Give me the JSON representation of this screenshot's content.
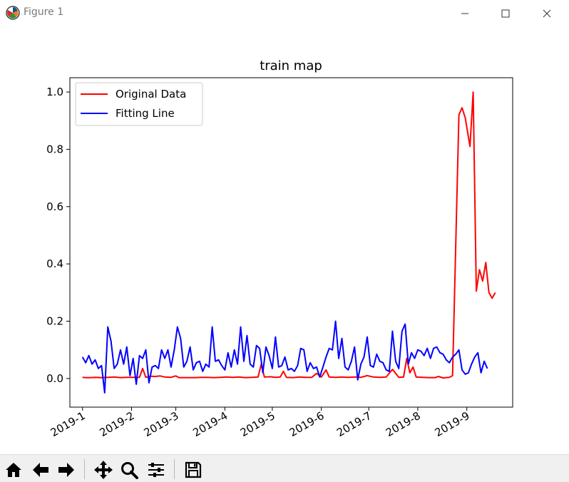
{
  "window": {
    "title": "Figure 1",
    "icons": {
      "app": "matplotlib-icon",
      "minimize": "minimize-icon",
      "maximize": "maximize-icon",
      "close": "close-icon"
    }
  },
  "toolbar": {
    "icons": [
      "home-icon",
      "back-arrow-icon",
      "forward-arrow-icon",
      "pan-icon",
      "zoom-icon",
      "subplots-config-icon",
      "save-icon"
    ]
  },
  "chart_data": {
    "type": "line",
    "title": "train map",
    "xlabel": "",
    "ylabel": "",
    "x_range": [
      "2018-12-24",
      "2019-09-30"
    ],
    "ylim": [
      -0.1,
      1.05
    ],
    "x_ticks": [
      "2019-1",
      "2019-2",
      "2019-3",
      "2019-4",
      "2019-5",
      "2019-6",
      "2019-7",
      "2019-8",
      "2019-9"
    ],
    "x_tick_dates": [
      "2019-01-01",
      "2019-02-01",
      "2019-03-01",
      "2019-04-01",
      "2019-05-01",
      "2019-06-01",
      "2019-07-01",
      "2019-08-01",
      "2019-09-01"
    ],
    "y_ticks": [
      "0.0",
      "0.2",
      "0.4",
      "0.6",
      "0.8",
      "1.0"
    ],
    "y_tick_values": [
      0.0,
      0.2,
      0.4,
      0.6,
      0.8,
      1.0
    ],
    "grid": false,
    "legend": {
      "position": "upper-left"
    },
    "series": [
      {
        "name": "Original Data",
        "color": "#ff0000",
        "points": [
          [
            "2019-01-01",
            0.004
          ],
          [
            "2019-01-03",
            0.003
          ],
          [
            "2019-01-06",
            0.003
          ],
          [
            "2019-01-09",
            0.004
          ],
          [
            "2019-01-13",
            0.003
          ],
          [
            "2019-01-17",
            0.004
          ],
          [
            "2019-01-21",
            0.005
          ],
          [
            "2019-01-25",
            0.003
          ],
          [
            "2019-01-29",
            0.004
          ],
          [
            "2019-02-02",
            0.004
          ],
          [
            "2019-02-06",
            0.004
          ],
          [
            "2019-02-08",
            0.035
          ],
          [
            "2019-02-10",
            0.004
          ],
          [
            "2019-02-13",
            0.008
          ],
          [
            "2019-02-16",
            0.007
          ],
          [
            "2019-02-19",
            0.009
          ],
          [
            "2019-02-22",
            0.005
          ],
          [
            "2019-02-26",
            0.004
          ],
          [
            "2019-03-01",
            0.009
          ],
          [
            "2019-03-03",
            0.003
          ],
          [
            "2019-03-08",
            0.003
          ],
          [
            "2019-03-13",
            0.003
          ],
          [
            "2019-03-17",
            0.004
          ],
          [
            "2019-03-21",
            0.004
          ],
          [
            "2019-03-25",
            0.003
          ],
          [
            "2019-03-29",
            0.004
          ],
          [
            "2019-04-02",
            0.005
          ],
          [
            "2019-04-06",
            0.004
          ],
          [
            "2019-04-10",
            0.005
          ],
          [
            "2019-04-14",
            0.003
          ],
          [
            "2019-04-18",
            0.004
          ],
          [
            "2019-04-22",
            0.005
          ],
          [
            "2019-04-24",
            0.05
          ],
          [
            "2019-04-26",
            0.005
          ],
          [
            "2019-04-30",
            0.006
          ],
          [
            "2019-05-03",
            0.004
          ],
          [
            "2019-05-06",
            0.005
          ],
          [
            "2019-05-08",
            0.025
          ],
          [
            "2019-05-10",
            0.004
          ],
          [
            "2019-05-14",
            0.003
          ],
          [
            "2019-05-18",
            0.005
          ],
          [
            "2019-05-22",
            0.004
          ],
          [
            "2019-05-26",
            0.004
          ],
          [
            "2019-05-29",
            0.018
          ],
          [
            "2019-06-01",
            0.005
          ],
          [
            "2019-06-04",
            0.03
          ],
          [
            "2019-06-06",
            0.005
          ],
          [
            "2019-06-10",
            0.004
          ],
          [
            "2019-06-14",
            0.005
          ],
          [
            "2019-06-18",
            0.004
          ],
          [
            "2019-06-22",
            0.005
          ],
          [
            "2019-06-26",
            0.004
          ],
          [
            "2019-06-30",
            0.01
          ],
          [
            "2019-07-04",
            0.005
          ],
          [
            "2019-07-08",
            0.004
          ],
          [
            "2019-07-12",
            0.005
          ],
          [
            "2019-07-16",
            0.032
          ],
          [
            "2019-07-20",
            0.004
          ],
          [
            "2019-07-23",
            0.005
          ],
          [
            "2019-07-25",
            0.07
          ],
          [
            "2019-07-27",
            0.02
          ],
          [
            "2019-07-29",
            0.04
          ],
          [
            "2019-07-31",
            0.005
          ],
          [
            "2019-08-04",
            0.004
          ],
          [
            "2019-08-08",
            0.003
          ],
          [
            "2019-08-12",
            0.003
          ],
          [
            "2019-08-14",
            0.007
          ],
          [
            "2019-08-17",
            0.002
          ],
          [
            "2019-08-21",
            0.004
          ],
          [
            "2019-08-23",
            0.01
          ],
          [
            "2019-08-27",
            0.92
          ],
          [
            "2019-08-29",
            0.945
          ],
          [
            "2019-08-31",
            0.91
          ],
          [
            "2019-09-03",
            0.81
          ],
          [
            "2019-09-05",
            1.0
          ],
          [
            "2019-09-07",
            0.305
          ],
          [
            "2019-09-09",
            0.38
          ],
          [
            "2019-09-11",
            0.34
          ],
          [
            "2019-09-13",
            0.405
          ],
          [
            "2019-09-15",
            0.3
          ],
          [
            "2019-09-17",
            0.28
          ],
          [
            "2019-09-19",
            0.3
          ]
        ]
      },
      {
        "name": "Fitting Line",
        "color": "#0000ff",
        "points": [
          [
            "2019-01-01",
            0.075
          ],
          [
            "2019-01-03",
            0.055
          ],
          [
            "2019-01-05",
            0.08
          ],
          [
            "2019-01-07",
            0.05
          ],
          [
            "2019-01-09",
            0.065
          ],
          [
            "2019-01-11",
            0.035
          ],
          [
            "2019-01-13",
            0.045
          ],
          [
            "2019-01-15",
            -0.05
          ],
          [
            "2019-01-17",
            0.18
          ],
          [
            "2019-01-19",
            0.13
          ],
          [
            "2019-01-21",
            0.035
          ],
          [
            "2019-01-23",
            0.05
          ],
          [
            "2019-01-25",
            0.1
          ],
          [
            "2019-01-27",
            0.05
          ],
          [
            "2019-01-29",
            0.11
          ],
          [
            "2019-01-31",
            0.01
          ],
          [
            "2019-02-02",
            0.07
          ],
          [
            "2019-02-04",
            -0.02
          ],
          [
            "2019-02-06",
            0.08
          ],
          [
            "2019-02-08",
            0.07
          ],
          [
            "2019-02-10",
            0.1
          ],
          [
            "2019-02-12",
            -0.015
          ],
          [
            "2019-02-14",
            0.04
          ],
          [
            "2019-02-16",
            0.045
          ],
          [
            "2019-02-18",
            0.035
          ],
          [
            "2019-02-20",
            0.1
          ],
          [
            "2019-02-22",
            0.07
          ],
          [
            "2019-02-24",
            0.1
          ],
          [
            "2019-02-26",
            0.04
          ],
          [
            "2019-02-28",
            0.1
          ],
          [
            "2019-03-02",
            0.18
          ],
          [
            "2019-03-04",
            0.14
          ],
          [
            "2019-03-06",
            0.04
          ],
          [
            "2019-03-08",
            0.06
          ],
          [
            "2019-03-10",
            0.11
          ],
          [
            "2019-03-12",
            0.03
          ],
          [
            "2019-03-14",
            0.055
          ],
          [
            "2019-03-16",
            0.06
          ],
          [
            "2019-03-18",
            0.025
          ],
          [
            "2019-03-20",
            0.05
          ],
          [
            "2019-03-22",
            0.04
          ],
          [
            "2019-03-24",
            0.18
          ],
          [
            "2019-03-26",
            0.06
          ],
          [
            "2019-03-28",
            0.065
          ],
          [
            "2019-03-30",
            0.045
          ],
          [
            "2019-04-01",
            0.03
          ],
          [
            "2019-04-03",
            0.09
          ],
          [
            "2019-04-05",
            0.04
          ],
          [
            "2019-04-07",
            0.1
          ],
          [
            "2019-04-09",
            0.05
          ],
          [
            "2019-04-11",
            0.18
          ],
          [
            "2019-04-13",
            0.06
          ],
          [
            "2019-04-15",
            0.15
          ],
          [
            "2019-04-17",
            0.05
          ],
          [
            "2019-04-19",
            0.04
          ],
          [
            "2019-04-21",
            0.115
          ],
          [
            "2019-04-23",
            0.105
          ],
          [
            "2019-04-25",
            0.02
          ],
          [
            "2019-04-27",
            0.11
          ],
          [
            "2019-04-29",
            0.08
          ],
          [
            "2019-05-01",
            0.035
          ],
          [
            "2019-05-03",
            0.145
          ],
          [
            "2019-05-05",
            0.04
          ],
          [
            "2019-05-07",
            0.045
          ],
          [
            "2019-05-09",
            0.075
          ],
          [
            "2019-05-11",
            0.03
          ],
          [
            "2019-05-13",
            0.035
          ],
          [
            "2019-05-15",
            0.025
          ],
          [
            "2019-05-17",
            0.045
          ],
          [
            "2019-05-19",
            0.105
          ],
          [
            "2019-05-21",
            0.1
          ],
          [
            "2019-05-23",
            0.025
          ],
          [
            "2019-05-25",
            0.055
          ],
          [
            "2019-05-27",
            0.035
          ],
          [
            "2019-05-29",
            0.04
          ],
          [
            "2019-05-31",
            0.005
          ],
          [
            "2019-06-02",
            0.04
          ],
          [
            "2019-06-04",
            0.075
          ],
          [
            "2019-06-06",
            0.105
          ],
          [
            "2019-06-08",
            0.1
          ],
          [
            "2019-06-10",
            0.2
          ],
          [
            "2019-06-12",
            0.07
          ],
          [
            "2019-06-14",
            0.14
          ],
          [
            "2019-06-16",
            0.04
          ],
          [
            "2019-06-18",
            0.03
          ],
          [
            "2019-06-20",
            0.06
          ],
          [
            "2019-06-22",
            0.11
          ],
          [
            "2019-06-24",
            -0.005
          ],
          [
            "2019-06-26",
            0.05
          ],
          [
            "2019-06-28",
            0.075
          ],
          [
            "2019-06-30",
            0.145
          ],
          [
            "2019-07-02",
            0.045
          ],
          [
            "2019-07-04",
            0.04
          ],
          [
            "2019-07-06",
            0.085
          ],
          [
            "2019-07-08",
            0.06
          ],
          [
            "2019-07-10",
            0.055
          ],
          [
            "2019-07-12",
            0.03
          ],
          [
            "2019-07-14",
            0.025
          ],
          [
            "2019-07-16",
            0.165
          ],
          [
            "2019-07-18",
            0.06
          ],
          [
            "2019-07-20",
            0.035
          ],
          [
            "2019-07-22",
            0.165
          ],
          [
            "2019-07-24",
            0.19
          ],
          [
            "2019-07-26",
            0.05
          ],
          [
            "2019-07-28",
            0.09
          ],
          [
            "2019-07-30",
            0.07
          ],
          [
            "2019-08-01",
            0.1
          ],
          [
            "2019-08-03",
            0.095
          ],
          [
            "2019-08-05",
            0.08
          ],
          [
            "2019-08-07",
            0.105
          ],
          [
            "2019-08-09",
            0.07
          ],
          [
            "2019-08-11",
            0.105
          ],
          [
            "2019-08-13",
            0.11
          ],
          [
            "2019-08-15",
            0.09
          ],
          [
            "2019-08-17",
            0.085
          ],
          [
            "2019-08-19",
            0.065
          ],
          [
            "2019-08-21",
            0.055
          ],
          [
            "2019-08-23",
            0.075
          ],
          [
            "2019-08-25",
            0.085
          ],
          [
            "2019-08-27",
            0.1
          ],
          [
            "2019-08-29",
            0.03
          ],
          [
            "2019-08-31",
            0.015
          ],
          [
            "2019-09-02",
            0.02
          ],
          [
            "2019-09-04",
            0.05
          ],
          [
            "2019-09-06",
            0.075
          ],
          [
            "2019-09-08",
            0.09
          ],
          [
            "2019-09-10",
            0.02
          ],
          [
            "2019-09-12",
            0.06
          ],
          [
            "2019-09-14",
            0.035
          ]
        ]
      }
    ]
  }
}
